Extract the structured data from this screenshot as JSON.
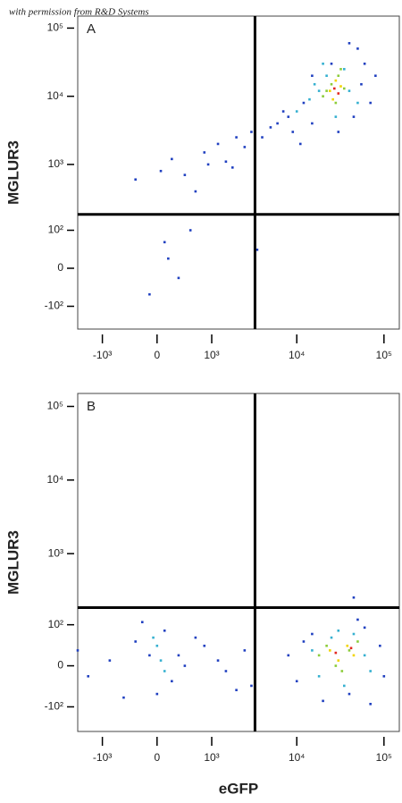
{
  "caption": "with permission from R&D Systems",
  "chart_data": [
    {
      "type": "scatter",
      "label": "A",
      "ylabel": "MGLUR3",
      "xscale": "logicle",
      "yscale": "logicle",
      "xlim": [
        -2000,
        150000
      ],
      "ylim": [
        -230,
        150000
      ],
      "xticks": [
        {
          "value": -1000,
          "label": "-10³"
        },
        0,
        {
          "value": 1000,
          "label": "10³"
        },
        {
          "value": 10000,
          "label": "10⁴"
        },
        {
          "value": 100000,
          "label": "10⁵"
        }
      ],
      "yticks": [
        {
          "value": -100,
          "label": "-10²"
        },
        0,
        {
          "value": 100,
          "label": "10²"
        },
        {
          "value": 1000,
          "label": "10³"
        },
        {
          "value": 10000,
          "label": "10⁴"
        },
        {
          "value": 100000,
          "label": "10⁵"
        }
      ],
      "quadrant": {
        "x": 3300,
        "y": 180
      },
      "series": [
        {
          "color": "#2040c0",
          "x": [
            -300,
            50,
            200,
            400,
            800,
            1200,
            600,
            1500,
            2000,
            2500,
            3000,
            4000,
            5000,
            6000,
            8000,
            9000,
            12000,
            15000,
            60000,
            70000,
            50000,
            45000,
            11000,
            100,
            -100,
            300,
            150,
            500,
            900,
            1800,
            15000,
            25000,
            30000,
            40000,
            55000,
            80000,
            7000,
            3500
          ],
          "values": [
            600,
            800,
            1200,
            700,
            1500,
            2000,
            400,
            1100,
            2500,
            1800,
            3000,
            2500,
            3500,
            4000,
            5000,
            3000,
            8000,
            4000,
            30000,
            8000,
            50000,
            5000,
            2000,
            60,
            -60,
            -20,
            20,
            100,
            1000,
            900,
            20000,
            30000,
            3000,
            60000,
            15000,
            20000,
            6000,
            40
          ]
        },
        {
          "color": "#35b0d0",
          "x": [
            10000,
            14000,
            18000,
            22000,
            35000,
            50000,
            28000,
            16000,
            40000,
            20000
          ],
          "values": [
            6000,
            9000,
            12000,
            20000,
            25000,
            8000,
            5000,
            15000,
            12000,
            30000
          ]
        },
        {
          "color": "#8ccc3a",
          "x": [
            20000,
            25000,
            30000,
            35000,
            28000,
            22000,
            32000
          ],
          "values": [
            10000,
            15000,
            20000,
            13000,
            8000,
            12000,
            25000
          ]
        },
        {
          "color": "#f2d500",
          "x": [
            24000,
            28000,
            32000,
            26000
          ],
          "values": [
            12000,
            17000,
            14000,
            9000
          ]
        },
        {
          "color": "#e2261f",
          "x": [
            27000,
            30000
          ],
          "values": [
            13000,
            11000
          ]
        }
      ]
    },
    {
      "type": "scatter",
      "label": "B",
      "ylabel": "MGLUR3",
      "xlabel": "eGFP",
      "xscale": "logicle",
      "yscale": "logicle",
      "xlim": [
        -2000,
        150000
      ],
      "ylim": [
        -230,
        150000
      ],
      "xticks": [
        {
          "value": -1000,
          "label": "-10³"
        },
        0,
        {
          "value": 1000,
          "label": "10³"
        },
        {
          "value": 10000,
          "label": "10⁴"
        },
        {
          "value": 100000,
          "label": "10⁵"
        }
      ],
      "yticks": [
        {
          "value": -100,
          "label": "-10²"
        },
        0,
        {
          "value": 100,
          "label": "10²"
        },
        {
          "value": 1000,
          "label": "10³"
        },
        {
          "value": 10000,
          "label": "10⁴"
        },
        {
          "value": 100000,
          "label": "10⁵"
        }
      ],
      "quadrant": {
        "x": 3300,
        "y": 180
      },
      "series": [
        {
          "color": "#2040c0",
          "x": [
            -2000,
            -1500,
            -800,
            -300,
            0,
            100,
            200,
            -100,
            400,
            800,
            1500,
            2500,
            3000,
            -500,
            600,
            1200,
            8000,
            10000,
            12000,
            90000,
            100000,
            70000,
            50000,
            15000,
            20000,
            40000,
            60000,
            300,
            -200,
            2000,
            45000
          ],
          "values": [
            30,
            -20,
            10,
            50,
            -60,
            80,
            -30,
            20,
            0,
            40,
            -10,
            30,
            -40,
            -70,
            60,
            10,
            20,
            -30,
            50,
            40,
            -20,
            -90,
            120,
            70,
            -80,
            -60,
            90,
            20,
            110,
            -50,
            250
          ]
        },
        {
          "color": "#35b0d0",
          "x": [
            0,
            50,
            -50,
            100,
            15000,
            18000,
            25000,
            35000,
            45000,
            60000,
            70000,
            30000
          ],
          "values": [
            40,
            10,
            60,
            -10,
            30,
            -20,
            60,
            -40,
            70,
            20,
            -10,
            80
          ]
        },
        {
          "color": "#8ccc3a",
          "x": [
            18000,
            22000,
            28000,
            40000,
            50000,
            33000
          ],
          "values": [
            20,
            40,
            0,
            30,
            50,
            -10
          ]
        },
        {
          "color": "#f2d500",
          "x": [
            24000,
            30000,
            38000,
            45000
          ],
          "values": [
            30,
            10,
            40,
            20
          ]
        },
        {
          "color": "#e2261f",
          "x": [
            28000,
            42000
          ],
          "values": [
            25,
            35
          ]
        }
      ]
    }
  ]
}
